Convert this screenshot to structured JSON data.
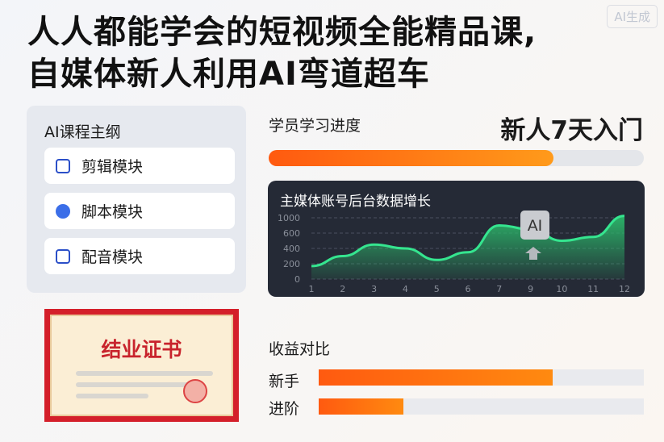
{
  "watermark": "AI生成",
  "title": [
    "人人都能学会的短视频全能精品课,",
    "自媒体新人利用AI弯道超车"
  ],
  "outline": {
    "heading": "AI课程主纲",
    "modules": [
      {
        "label": "剪辑模块",
        "icon": "clipboard-check-icon"
      },
      {
        "label": "脚本模块",
        "icon": "globe-badge-icon"
      },
      {
        "label": "配音模块",
        "icon": "inbox-icon"
      }
    ]
  },
  "certificate": {
    "title": "结业证书"
  },
  "progress": {
    "label": "学员学习进度",
    "badge": "新人7天入门",
    "percent": 76,
    "color": "#ff6a13"
  },
  "chart_data": {
    "type": "area",
    "title": "主媒体账号后台数据增长",
    "categories": [
      "1",
      "2",
      "3",
      "4",
      "5",
      "6",
      "7",
      "9",
      "10",
      "11",
      "12"
    ],
    "yticks": [
      "0",
      "200",
      "400",
      "600",
      "1000"
    ],
    "values": [
      170,
      300,
      450,
      400,
      250,
      350,
      800,
      700,
      500,
      550,
      1050
    ],
    "line_color": "#35e58f",
    "grid": true,
    "annotation": "AI"
  },
  "income": {
    "title": "收益对比",
    "rows": [
      {
        "label": "新手",
        "percent": 72
      },
      {
        "label": "进阶",
        "percent": 26
      }
    ]
  }
}
